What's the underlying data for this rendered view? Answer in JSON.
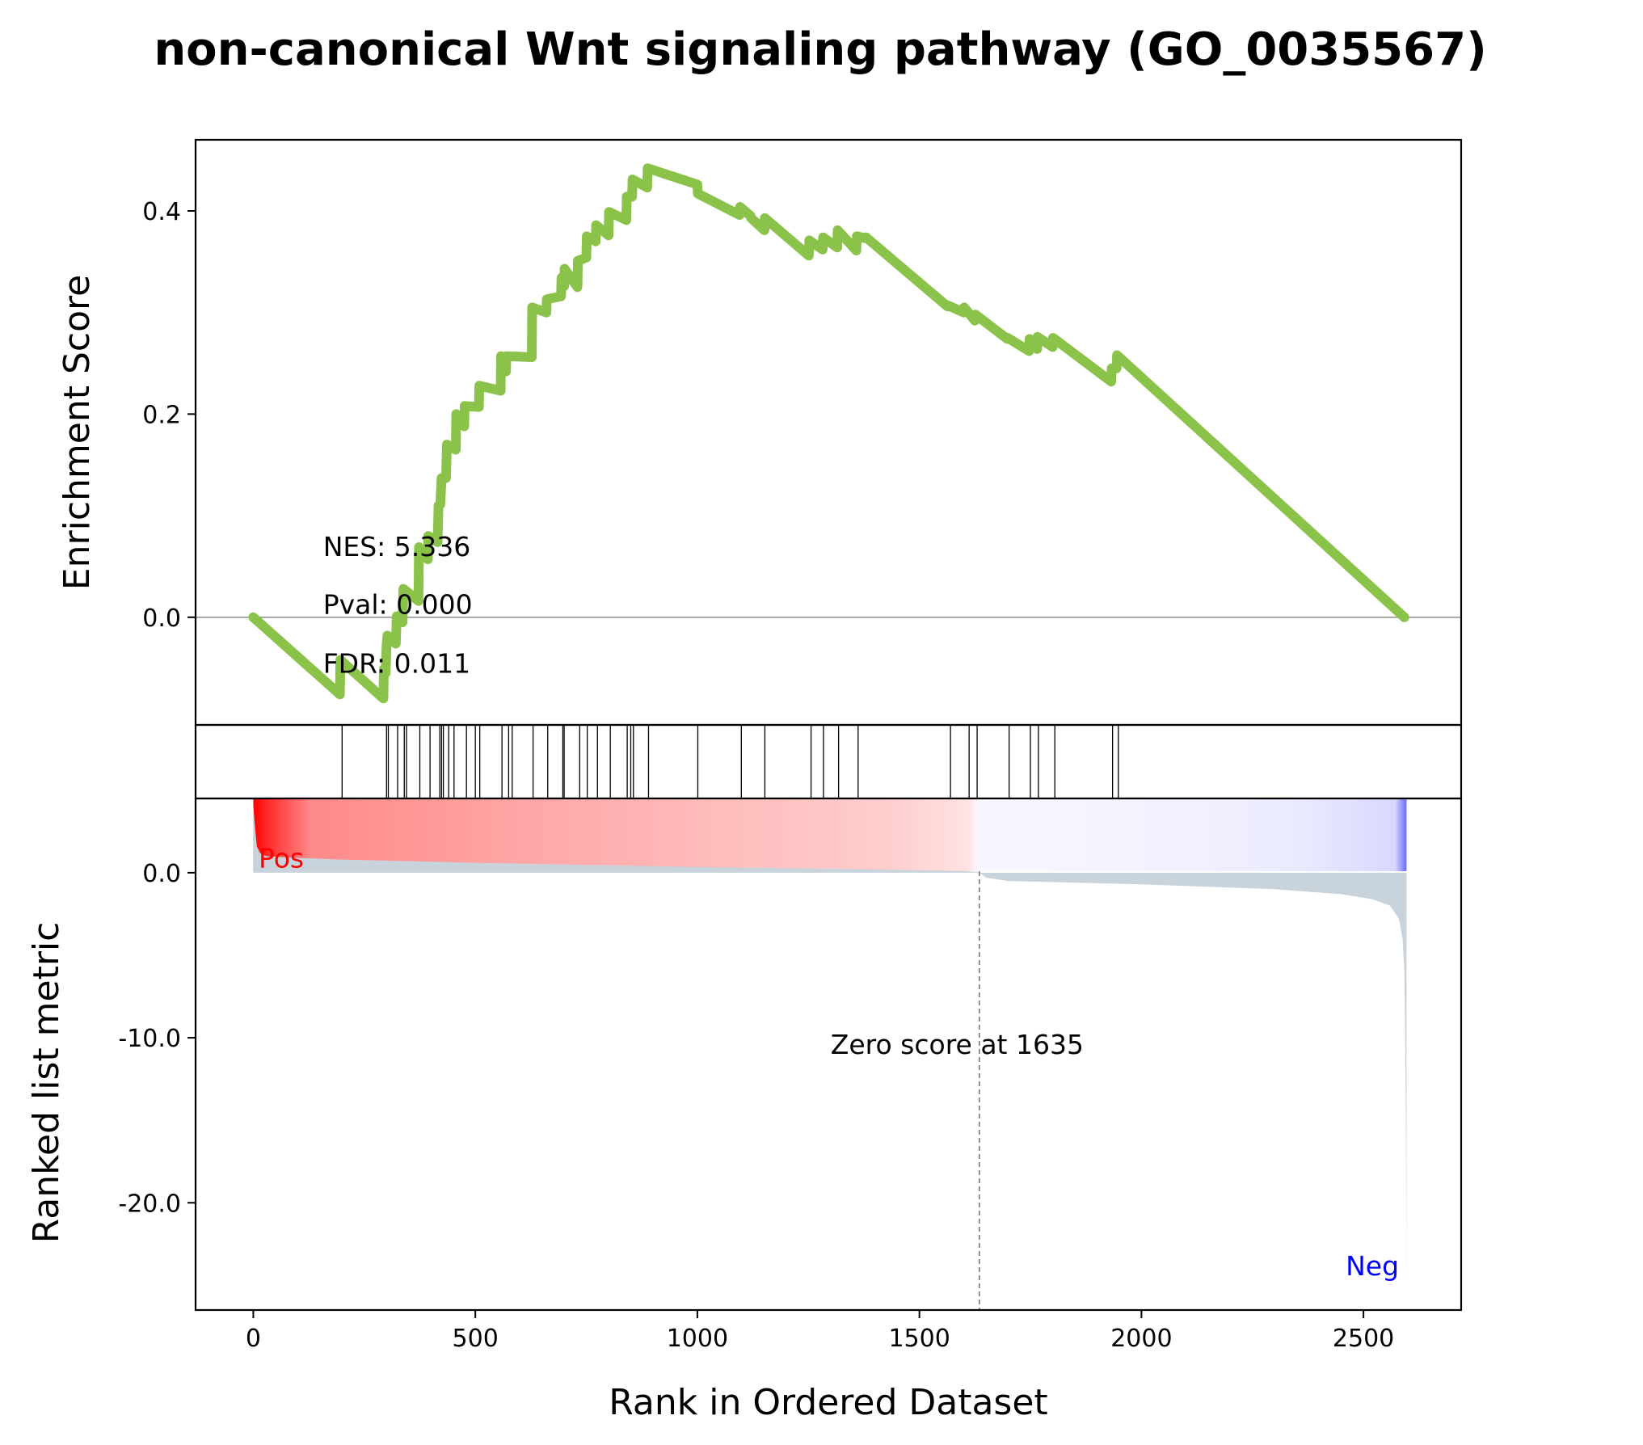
{
  "chart_data": {
    "type": "line",
    "title": "non-canonical Wnt signaling pathway (GO_0035567)",
    "xlabel": "Rank in Ordered Dataset",
    "xlim": [
      -130,
      2720
    ],
    "x_ticks": [
      0,
      500,
      1000,
      1500,
      2000,
      2500
    ],
    "x_tick_labels": [
      "0",
      "500",
      "1000",
      "1500",
      "2000",
      "2500"
    ],
    "es_panel": {
      "ylabel": "Enrichment Score",
      "ylim": [
        -0.106,
        0.47
      ],
      "y_ticks": [
        0.0,
        0.2,
        0.4
      ],
      "y_tick_labels": [
        "0.0",
        "0.2",
        "0.4"
      ],
      "line_color": "#8bc34a",
      "series": [
        {
          "x": [
            0,
            195,
            196,
            293,
            294,
            298,
            300,
            302,
            321,
            323,
            336,
            338,
            372,
            373,
            393,
            394,
            415,
            417,
            421,
            424,
            434,
            436,
            456,
            457,
            475,
            476,
            508,
            509,
            557,
            558,
            569,
            570,
            627,
            628,
            660,
            661,
            693,
            694,
            700,
            701,
            730,
            731,
            750,
            751,
            771,
            772,
            800,
            801,
            840,
            841,
            853,
            854,
            887,
            888,
            1000,
            1001,
            1095,
            1096,
            1120,
            1121,
            1151,
            1152,
            1251,
            1252,
            1282,
            1283,
            1315,
            1316,
            1358,
            1359,
            1379,
            1380,
            1563,
            1564,
            1600,
            1601,
            1625,
            1626,
            1698,
            1699,
            1747,
            1748,
            1765,
            1766,
            1800,
            1801,
            1932,
            1933,
            1944,
            1945,
            2592
          ],
          "y": [
            0.0,
            -0.076,
            -0.042,
            -0.08,
            -0.051,
            -0.055,
            -0.028,
            -0.018,
            -0.026,
            0.001,
            -0.005,
            0.028,
            0.016,
            0.069,
            0.057,
            0.08,
            0.074,
            0.11,
            0.111,
            0.137,
            0.137,
            0.17,
            0.165,
            0.2,
            0.188,
            0.208,
            0.207,
            0.228,
            0.223,
            0.257,
            0.242,
            0.257,
            0.256,
            0.305,
            0.3,
            0.313,
            0.316,
            0.334,
            0.326,
            0.343,
            0.325,
            0.351,
            0.354,
            0.375,
            0.37,
            0.386,
            0.376,
            0.399,
            0.391,
            0.414,
            0.414,
            0.431,
            0.423,
            0.442,
            0.426,
            0.417,
            0.396,
            0.404,
            0.395,
            0.393,
            0.381,
            0.393,
            0.356,
            0.371,
            0.362,
            0.374,
            0.364,
            0.381,
            0.361,
            0.375,
            0.373,
            0.374,
            0.306,
            0.307,
            0.3,
            0.305,
            0.292,
            0.298,
            0.274,
            0.275,
            0.262,
            0.274,
            0.264,
            0.276,
            0.266,
            0.275,
            0.232,
            0.245,
            0.245,
            0.258,
            0.0
          ]
        }
      ],
      "annotations": [
        "NES: 5.336",
        "Pval: 0.000",
        "FDR: 0.011"
      ]
    },
    "hit_panel": {
      "hits": [
        200,
        300,
        304,
        325,
        340,
        345,
        375,
        398,
        420,
        424,
        428,
        440,
        452,
        480,
        500,
        510,
        560,
        575,
        583,
        630,
        663,
        697,
        700,
        735,
        752,
        775,
        804,
        842,
        850,
        856,
        890,
        1001,
        1099,
        1152,
        1256,
        1284,
        1318,
        1362,
        1570,
        1612,
        1630,
        1702,
        1750,
        1768,
        1805,
        1935,
        1948
      ]
    },
    "rank_panel": {
      "ylabel": "Ranked list metric",
      "ylim": [
        -26.5,
        4.5
      ],
      "y_ticks": [
        0.0,
        -10.0,
        -20.0
      ],
      "y_tick_labels": [
        "0.0",
        "-10.0",
        "-20.0"
      ],
      "fill_color": "#c9d3db",
      "series": [
        {
          "x": [
            0,
            3,
            8,
            15,
            30,
            100,
            200,
            500,
            1000,
            1400,
            1600,
            1630,
            1635,
            1650,
            1700,
            2000,
            2300,
            2450,
            2520,
            2560,
            2580,
            2588,
            2592,
            2594,
            2596,
            2597
          ],
          "y": [
            4.2,
            3.0,
            1.6,
            1.2,
            1.0,
            0.9,
            0.8,
            0.6,
            0.35,
            0.2,
            0.1,
            0.05,
            0.0,
            -0.3,
            -0.5,
            -0.7,
            -1.0,
            -1.3,
            -1.6,
            -2.0,
            -2.8,
            -4.0,
            -6.0,
            -10.0,
            -18.0,
            -25.0
          ]
        }
      ],
      "zero_score_rank": 1635,
      "zero_score_label": "Zero score at 1635",
      "pos_label": "Pos",
      "neg_label": "Neg",
      "pos_color": "#ff0000",
      "neg_color": "#0000ff"
    }
  }
}
